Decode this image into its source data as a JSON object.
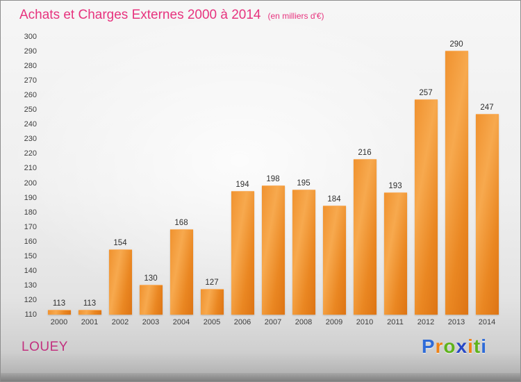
{
  "header": {
    "title": "Achats et Charges Externes 2000 à 2014",
    "subtitle": "(en milliers d'€)"
  },
  "footer": {
    "left_label": "LOUEY",
    "logo_letters": [
      {
        "ch": "P",
        "color": "#2e6bd8"
      },
      {
        "ch": "r",
        "color": "#f08214"
      },
      {
        "ch": "o",
        "color": "#5fb31c"
      },
      {
        "ch": "x",
        "color": "#2748c6"
      },
      {
        "ch": "i",
        "color": "#f08214"
      },
      {
        "ch": "t",
        "color": "#5fb31c"
      },
      {
        "ch": "i",
        "color": "#2e6bd8"
      }
    ]
  },
  "chart_data": {
    "type": "bar",
    "title": "Achats et Charges Externes 2000 à 2014",
    "subtitle": "(en milliers d'€)",
    "categories": [
      "2000",
      "2001",
      "2002",
      "2003",
      "2004",
      "2005",
      "2006",
      "2007",
      "2008",
      "2009",
      "2010",
      "2011",
      "2012",
      "2013",
      "2014"
    ],
    "values": [
      113,
      113,
      154,
      130,
      168,
      127,
      194,
      198,
      195,
      184,
      216,
      193,
      257,
      290,
      247
    ],
    "xlabel": "",
    "ylabel": "",
    "ylim": [
      110,
      300
    ],
    "ytick_step": 10,
    "grid": false,
    "legend": "none",
    "bar_color": "#ef8c26",
    "value_label_color": "#2e2e2e",
    "title_color": "#e7337e"
  }
}
